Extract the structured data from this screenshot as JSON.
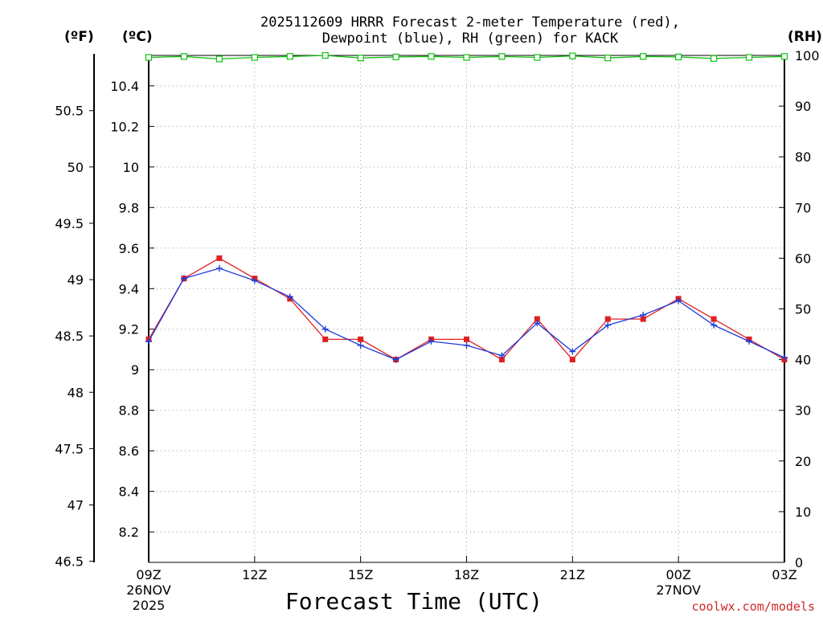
{
  "chart_data": {
    "type": "line",
    "title_line1": "2025112609 HRRR Forecast 2-meter Temperature (red),",
    "title_line2": "Dewpoint (blue), RH (green) for KACK",
    "xlabel": "Forecast Time (UTC)",
    "left_outer_unit": "(ºF)",
    "left_inner_unit": "(ºC)",
    "right_unit": "(RH)",
    "watermark": "coolwx.com/models",
    "x_hours": [
      0,
      1,
      2,
      3,
      4,
      5,
      6,
      7,
      8,
      9,
      10,
      11,
      12,
      13,
      14,
      15,
      16,
      17,
      18
    ],
    "x_ticks": [
      {
        "hour": 0,
        "label": "09Z",
        "sub1": "26NOV",
        "sub2": "2025"
      },
      {
        "hour": 3,
        "label": "12Z",
        "sub1": "",
        "sub2": ""
      },
      {
        "hour": 6,
        "label": "15Z",
        "sub1": "",
        "sub2": ""
      },
      {
        "hour": 9,
        "label": "18Z",
        "sub1": "",
        "sub2": ""
      },
      {
        "hour": 12,
        "label": "21Z",
        "sub1": "",
        "sub2": ""
      },
      {
        "hour": 15,
        "label": "00Z",
        "sub1": "27NOV",
        "sub2": ""
      },
      {
        "hour": 18,
        "label": "03Z",
        "sub1": "",
        "sub2": ""
      }
    ],
    "xlim": [
      0,
      18
    ],
    "ylim_c": [
      8.05,
      10.55
    ],
    "yticks_c": [
      "8.2",
      "8.4",
      "8.6",
      "8.8",
      "9",
      "9.2",
      "9.4",
      "9.6",
      "9.8",
      "10",
      "10.2",
      "10.4"
    ],
    "yticks_f": [
      "46.5",
      "47",
      "47.5",
      "48",
      "48.5",
      "49",
      "49.5",
      "50",
      "50.5"
    ],
    "ylim_rh": [
      0,
      100
    ],
    "yticks_rh": [
      "0",
      "10",
      "20",
      "30",
      "40",
      "50",
      "60",
      "70",
      "80",
      "90",
      "100"
    ],
    "grid": true,
    "series": [
      {
        "name": "Temperature",
        "color": "#e02020",
        "values": [
          9.15,
          9.45,
          9.55,
          9.45,
          9.35,
          9.15,
          9.15,
          9.05,
          9.15,
          9.15,
          9.05,
          9.25,
          9.05,
          9.25,
          9.25,
          9.35,
          9.25,
          9.15,
          9.05
        ]
      },
      {
        "name": "Dewpoint",
        "color": "#1e3cdc",
        "values": [
          9.14,
          9.45,
          9.5,
          9.44,
          9.36,
          9.2,
          9.12,
          9.05,
          9.14,
          9.12,
          9.07,
          9.23,
          9.09,
          9.22,
          9.27,
          9.34,
          9.22,
          9.14,
          9.06
        ]
      },
      {
        "name": "RH",
        "color": "#10c010",
        "values": [
          99.6,
          99.8,
          99.3,
          99.6,
          99.8,
          100,
          99.5,
          99.7,
          99.8,
          99.6,
          99.8,
          99.6,
          99.9,
          99.5,
          99.8,
          99.7,
          99.4,
          99.6,
          99.8
        ]
      }
    ]
  }
}
